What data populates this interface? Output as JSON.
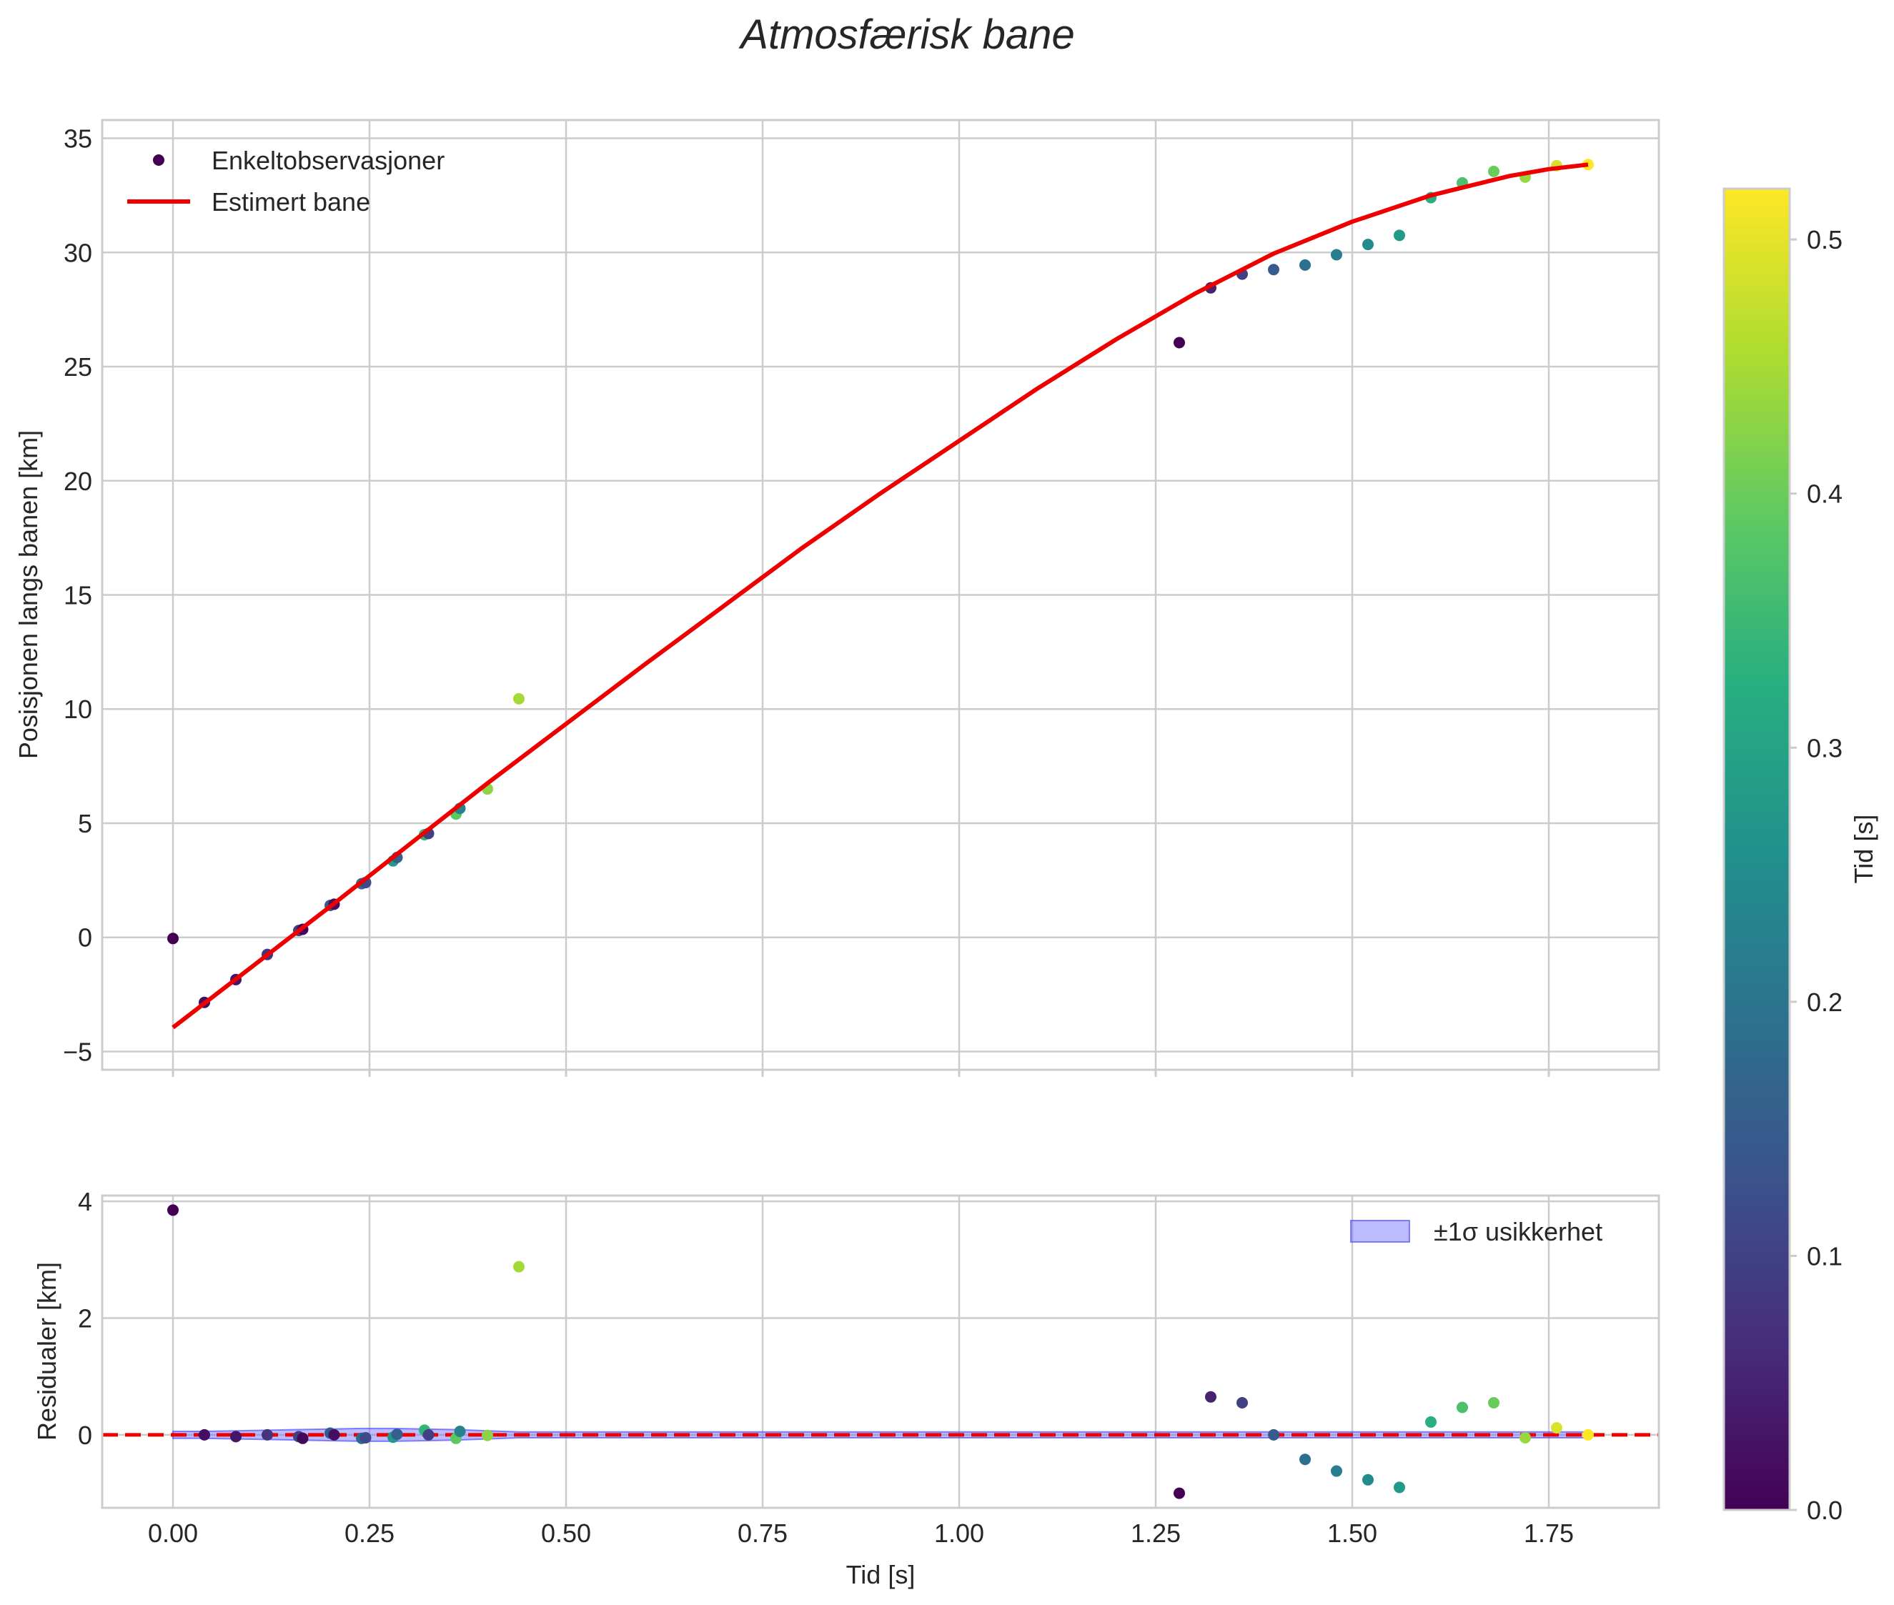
{
  "chart_data": [
    {
      "type": "scatter",
      "panel": "top",
      "title": "Atmosfærisk bane",
      "xlabel": "",
      "ylabel": "Posisjonen langs banen [km]",
      "xlim": [
        -0.09,
        1.89
      ],
      "ylim": [
        -5.8,
        35.8
      ],
      "xticks": [
        0.0,
        0.25,
        0.5,
        0.75,
        1.0,
        1.25,
        1.5,
        1.75
      ],
      "yticks": [
        -5,
        0,
        5,
        10,
        15,
        20,
        25,
        30,
        35
      ],
      "ytick_labels": [
        "−5",
        "0",
        "5",
        "10",
        "15",
        "20",
        "25",
        "30",
        "35"
      ],
      "grid": true,
      "legend": {
        "position": "upper-left",
        "entries": [
          {
            "label": "Enkeltobservasjoner",
            "kind": "marker",
            "color": "#440154"
          },
          {
            "label": "Estimert bane",
            "kind": "line",
            "color": "#ee0000"
          }
        ]
      },
      "series": [
        {
          "name": "Enkeltobservasjoner",
          "kind": "scatter",
          "colormap": "viridis",
          "color_value_key": "c",
          "points": [
            {
              "x": 0.0,
              "y": -0.05,
              "c": 0.0
            },
            {
              "x": 0.04,
              "y": -2.85,
              "c": 0.02
            },
            {
              "x": 0.08,
              "y": -1.85,
              "c": 0.03
            },
            {
              "x": 0.12,
              "y": -0.75,
              "c": 0.08
            },
            {
              "x": 0.16,
              "y": 0.3,
              "c": 0.1
            },
            {
              "x": 0.165,
              "y": 0.35,
              "c": 0.01
            },
            {
              "x": 0.2,
              "y": 1.4,
              "c": 0.15
            },
            {
              "x": 0.205,
              "y": 1.45,
              "c": 0.02
            },
            {
              "x": 0.24,
              "y": 2.35,
              "c": 0.18
            },
            {
              "x": 0.245,
              "y": 2.4,
              "c": 0.12
            },
            {
              "x": 0.28,
              "y": 3.35,
              "c": 0.28
            },
            {
              "x": 0.285,
              "y": 3.5,
              "c": 0.16
            },
            {
              "x": 0.32,
              "y": 4.5,
              "c": 0.34
            },
            {
              "x": 0.325,
              "y": 4.55,
              "c": 0.1
            },
            {
              "x": 0.36,
              "y": 5.4,
              "c": 0.39
            },
            {
              "x": 0.365,
              "y": 5.65,
              "c": 0.23
            },
            {
              "x": 0.4,
              "y": 6.5,
              "c": 0.43
            },
            {
              "x": 0.44,
              "y": 10.45,
              "c": 0.45
            },
            {
              "x": 1.28,
              "y": 26.05,
              "c": 0.0
            },
            {
              "x": 1.32,
              "y": 28.45,
              "c": 0.05
            },
            {
              "x": 1.36,
              "y": 29.05,
              "c": 0.1
            },
            {
              "x": 1.4,
              "y": 29.25,
              "c": 0.15
            },
            {
              "x": 1.44,
              "y": 29.45,
              "c": 0.19
            },
            {
              "x": 1.48,
              "y": 29.9,
              "c": 0.22
            },
            {
              "x": 1.52,
              "y": 30.35,
              "c": 0.25
            },
            {
              "x": 1.56,
              "y": 30.75,
              "c": 0.28
            },
            {
              "x": 1.6,
              "y": 32.4,
              "c": 0.33
            },
            {
              "x": 1.64,
              "y": 33.05,
              "c": 0.37
            },
            {
              "x": 1.68,
              "y": 33.55,
              "c": 0.4
            },
            {
              "x": 1.72,
              "y": 33.3,
              "c": 0.44
            },
            {
              "x": 1.76,
              "y": 33.8,
              "c": 0.49
            },
            {
              "x": 1.8,
              "y": 33.85,
              "c": 0.52
            }
          ]
        },
        {
          "name": "Estimert bane",
          "kind": "line",
          "color": "#ee0000",
          "x": [
            0.0,
            0.1,
            0.2,
            0.3,
            0.4,
            0.5,
            0.6,
            0.7,
            0.8,
            0.9,
            1.0,
            1.1,
            1.2,
            1.3,
            1.4,
            1.5,
            1.6,
            1.7,
            1.75,
            1.8
          ],
          "y": [
            -3.95,
            -1.3,
            1.35,
            4.05,
            6.75,
            9.35,
            11.95,
            14.5,
            17.05,
            19.45,
            21.75,
            24.05,
            26.2,
            28.2,
            29.95,
            31.35,
            32.5,
            33.35,
            33.65,
            33.85
          ]
        }
      ]
    },
    {
      "type": "scatter",
      "panel": "bottom",
      "title": "",
      "xlabel": "Tid [s]",
      "ylabel": "Residualer [km]",
      "xlim": [
        -0.09,
        1.89
      ],
      "ylim": [
        -1.25,
        4.1
      ],
      "xticks": [
        0.0,
        0.25,
        0.5,
        0.75,
        1.0,
        1.25,
        1.5,
        1.75
      ],
      "xtick_labels": [
        "0.00",
        "0.25",
        "0.50",
        "0.75",
        "1.00",
        "1.25",
        "1.50",
        "1.75"
      ],
      "yticks": [
        0,
        2,
        4
      ],
      "ytick_labels": [
        "0",
        "2",
        "4"
      ],
      "grid": true,
      "zero_line": {
        "y": 0,
        "style": "dashed",
        "color": "#ee0000"
      },
      "band": {
        "label": "±1σ usikkerhet",
        "color": "#6b6bff",
        "x": [
          0.0,
          0.04,
          0.08,
          0.12,
          0.16,
          0.2,
          0.24,
          0.28,
          0.32,
          0.36,
          0.4,
          0.44,
          1.28,
          1.4,
          1.56,
          1.8
        ],
        "lower": [
          -0.06,
          -0.06,
          -0.07,
          -0.08,
          -0.09,
          -0.1,
          -0.11,
          -0.11,
          -0.1,
          -0.09,
          -0.07,
          -0.05,
          -0.05,
          -0.05,
          -0.05,
          -0.05
        ],
        "upper": [
          0.06,
          0.06,
          0.07,
          0.08,
          0.09,
          0.1,
          0.11,
          0.11,
          0.1,
          0.09,
          0.07,
          0.05,
          0.05,
          0.05,
          0.05,
          0.05
        ]
      },
      "legend": {
        "position": "upper-right",
        "entries": [
          {
            "label": "±1σ usikkerhet",
            "kind": "patch",
            "color": "#6b6bff"
          }
        ]
      },
      "series": [
        {
          "name": "Residualer",
          "kind": "scatter",
          "colormap": "viridis",
          "color_value_key": "c",
          "points": [
            {
              "x": 0.0,
              "y": 3.85,
              "c": 0.0
            },
            {
              "x": 0.04,
              "y": 0.0,
              "c": 0.02
            },
            {
              "x": 0.08,
              "y": -0.03,
              "c": 0.03
            },
            {
              "x": 0.12,
              "y": 0.0,
              "c": 0.08
            },
            {
              "x": 0.16,
              "y": -0.03,
              "c": 0.1
            },
            {
              "x": 0.165,
              "y": -0.06,
              "c": 0.01
            },
            {
              "x": 0.2,
              "y": 0.03,
              "c": 0.15
            },
            {
              "x": 0.205,
              "y": 0.0,
              "c": 0.02
            },
            {
              "x": 0.24,
              "y": -0.06,
              "c": 0.18
            },
            {
              "x": 0.245,
              "y": -0.05,
              "c": 0.12
            },
            {
              "x": 0.28,
              "y": -0.04,
              "c": 0.28
            },
            {
              "x": 0.285,
              "y": 0.01,
              "c": 0.16
            },
            {
              "x": 0.32,
              "y": 0.08,
              "c": 0.34
            },
            {
              "x": 0.325,
              "y": 0.0,
              "c": 0.1
            },
            {
              "x": 0.36,
              "y": -0.06,
              "c": 0.39
            },
            {
              "x": 0.365,
              "y": 0.06,
              "c": 0.23
            },
            {
              "x": 0.4,
              "y": -0.01,
              "c": 0.43
            },
            {
              "x": 0.44,
              "y": 2.88,
              "c": 0.45
            },
            {
              "x": 1.28,
              "y": -1.0,
              "c": 0.0
            },
            {
              "x": 1.32,
              "y": 0.65,
              "c": 0.05
            },
            {
              "x": 1.36,
              "y": 0.55,
              "c": 0.1
            },
            {
              "x": 1.4,
              "y": 0.0,
              "c": 0.15
            },
            {
              "x": 1.44,
              "y": -0.42,
              "c": 0.19
            },
            {
              "x": 1.48,
              "y": -0.62,
              "c": 0.22
            },
            {
              "x": 1.52,
              "y": -0.77,
              "c": 0.25
            },
            {
              "x": 1.56,
              "y": -0.9,
              "c": 0.28
            },
            {
              "x": 1.6,
              "y": 0.22,
              "c": 0.33
            },
            {
              "x": 1.64,
              "y": 0.47,
              "c": 0.37
            },
            {
              "x": 1.68,
              "y": 0.55,
              "c": 0.4
            },
            {
              "x": 1.72,
              "y": -0.05,
              "c": 0.44
            },
            {
              "x": 1.76,
              "y": 0.12,
              "c": 0.49
            },
            {
              "x": 1.8,
              "y": 0.0,
              "c": 0.52
            }
          ]
        }
      ]
    },
    {
      "type": "colorbar",
      "label": "Tid [s]",
      "colormap": "viridis",
      "range": [
        0.0,
        0.52
      ],
      "ticks": [
        0.0,
        0.1,
        0.2,
        0.3,
        0.4,
        0.5
      ],
      "tick_labels": [
        "0.0",
        "0.1",
        "0.2",
        "0.3",
        "0.4",
        "0.5"
      ]
    }
  ]
}
